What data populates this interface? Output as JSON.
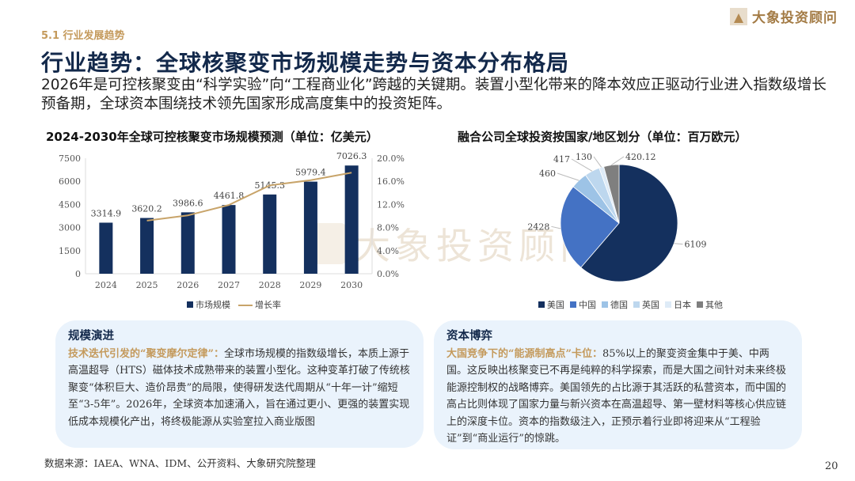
{
  "header": {
    "section": "5.1 行业发展趋势",
    "title": "行业趋势：全球核聚变市场规模走势与资本分布格局",
    "subtitle": "2026年是可控核聚变由“科学实验”向“工程商业化”跨越的关键期。装置小型化带来的降本效应正驱动行业进入指数级增长预备期，全球资本围绕技术领先国家形成高度集中的投资矩阵。"
  },
  "logo": {
    "text": "大象投资顾问"
  },
  "watermark": {
    "text": "大象投资顾问"
  },
  "chart_data": [
    {
      "type": "bar",
      "title": "2024-2030年全球可控核聚变市场规模预测（单位：亿美元）",
      "categories": [
        "2024",
        "2025",
        "2026",
        "2027",
        "2028",
        "2029",
        "2030"
      ],
      "series": [
        {
          "name": "市场规模",
          "type": "bar",
          "axis": "left",
          "color": "#14305e",
          "values": [
            3314.9,
            3620.2,
            3986.6,
            4461.8,
            5145.3,
            5979.4,
            7026.3
          ]
        },
        {
          "name": "增长率",
          "type": "line",
          "axis": "right",
          "color": "#c8a46a",
          "values": [
            null,
            9.2,
            10.1,
            11.9,
            15.3,
            16.2,
            17.5
          ]
        }
      ],
      "yticks_left": [
        "0",
        "1500",
        "3000",
        "4500",
        "6000",
        "7500"
      ],
      "ylim_left": [
        0,
        7500
      ],
      "yticks_right": [
        "0.0%",
        "4.0%",
        "8.0%",
        "12.0%",
        "16.0%",
        "20.0%"
      ],
      "ylim_right": [
        0,
        20
      ],
      "legend": "bottom",
      "grid": false
    },
    {
      "type": "pie",
      "title": "融合公司全球投资按国家/地区划分（单位：百万欧元）",
      "categories": [
        "美国",
        "中国",
        "德国",
        "英国",
        "日本",
        "其他"
      ],
      "values": [
        6109,
        2428,
        460,
        417,
        130,
        420.12
      ],
      "labels": [
        "6109",
        "2428",
        "460",
        "417",
        "130",
        "420.12"
      ],
      "colors": [
        "#14305e",
        "#4472c4",
        "#9dc3e6",
        "#bdd7ee",
        "#deebf7",
        "#7f7f7f"
      ],
      "legend": "bottom"
    }
  ],
  "boxes": [
    {
      "title": "规模演进",
      "highlight": "技术迭代引发的“聚变摩尔定律”：",
      "body": "全球市场规模的指数级增长，本质上源于高温超导（HTS）磁体技术成熟带来的装置小型化。这种变革打破了传统核聚变“体积巨大、造价昂贵”的局限，使得研发迭代周期从“十年一计”缩短至“3-5年”。2026年，全球资本加速涌入，旨在通过更小、更强的装置实现低成本规模化产出，将终极能源从实验室拉入商业版图"
    },
    {
      "title": "资本博弈",
      "highlight": "大国竞争下的“能源制高点”卡位：",
      "body": "85%以上的聚变资金集中于美、中两国。这反映出核聚变已不再是纯粹的科学探索，而是大国之间针对未来终极能源控制权的战略博弈。美国领先的占比源于其活跃的私营资本，而中国的高占比则体现了国家力量与新兴资本在高温超导、第一壁材料等核心供应链上的深度卡位。资本的指数级注入，正预示着行业即将迎来从“工程验证”到“商业运行”的惊跳。"
    }
  ],
  "footer": {
    "source": "数据来源：IAEA、WNA、IDM、公开资料、大象研究院整理",
    "page": "20"
  }
}
